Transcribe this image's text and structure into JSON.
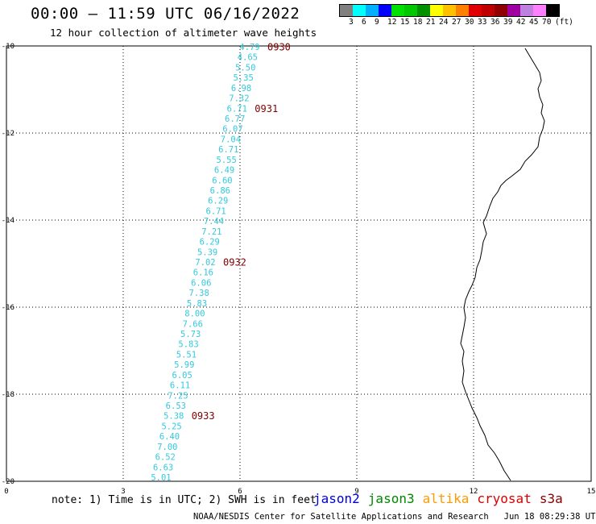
{
  "title": "00:00 – 11:59 UTC 06/16/2022",
  "subtitle": "12 hour collection of altimeter wave heights",
  "colorbar": {
    "colors": [
      "#808080",
      "#00ffff",
      "#00b0ff",
      "#0000ff",
      "#00e000",
      "#00c800",
      "#009000",
      "#ffff00",
      "#ffc000",
      "#ff8000",
      "#e00000",
      "#c00000",
      "#900000",
      "#a000a0",
      "#c080e0",
      "#ff80ff",
      "#000000"
    ],
    "labels": [
      "3",
      "6",
      "9",
      "12",
      "15",
      "18",
      "21",
      "24",
      "27",
      "30",
      "33",
      "36",
      "39",
      "42",
      "45",
      "70",
      "(ft)"
    ]
  },
  "axes": {
    "x_ticks": [
      "0",
      "3",
      "6",
      "9",
      "12",
      "15"
    ],
    "y_ticks": [
      "-10",
      "-12",
      "-14",
      "-16",
      "-18",
      "-20"
    ]
  },
  "wave_heights": [
    "4.79",
    "4.65",
    "5.50",
    "5.35",
    "6.98",
    "7.32",
    "6.71",
    "6.77",
    "6.07",
    "7.04",
    "6.71",
    "5.55",
    "6.49",
    "6.60",
    "6.86",
    "6.29",
    "6.71",
    "7.44",
    "7.21",
    "6.29",
    "5.39",
    "7.02",
    "6.16",
    "6.06",
    "7.38",
    "5.83",
    "8.00",
    "7.66",
    "5.73",
    "5.83",
    "5.51",
    "5.99",
    "6.05",
    "6.11",
    "7.25",
    "6.53",
    "5.38",
    "5.25",
    "6.40",
    "7.00",
    "6.52",
    "6.63",
    "5.01"
  ],
  "time_labels": [
    {
      "text": "0930",
      "index": 0
    },
    {
      "text": "0931",
      "index": 6
    },
    {
      "text": "0932",
      "index": 21
    },
    {
      "text": "0933",
      "index": 36
    }
  ],
  "note": "note: 1) Time is in UTC; 2) SWH is in feet",
  "satellites": [
    {
      "name": "jason2",
      "color": "#0000dd"
    },
    {
      "name": "jason3",
      "color": "#008800"
    },
    {
      "name": "altika",
      "color": "#ff9900"
    },
    {
      "name": "cryosat",
      "color": "#dd0000"
    },
    {
      "name": "s3a",
      "color": "#880000"
    }
  ],
  "credit": "NOAA/NESDIS Center for Satellite Applications and Research",
  "timestamp": "Jun 18 08:29:38 UTC 2022"
}
